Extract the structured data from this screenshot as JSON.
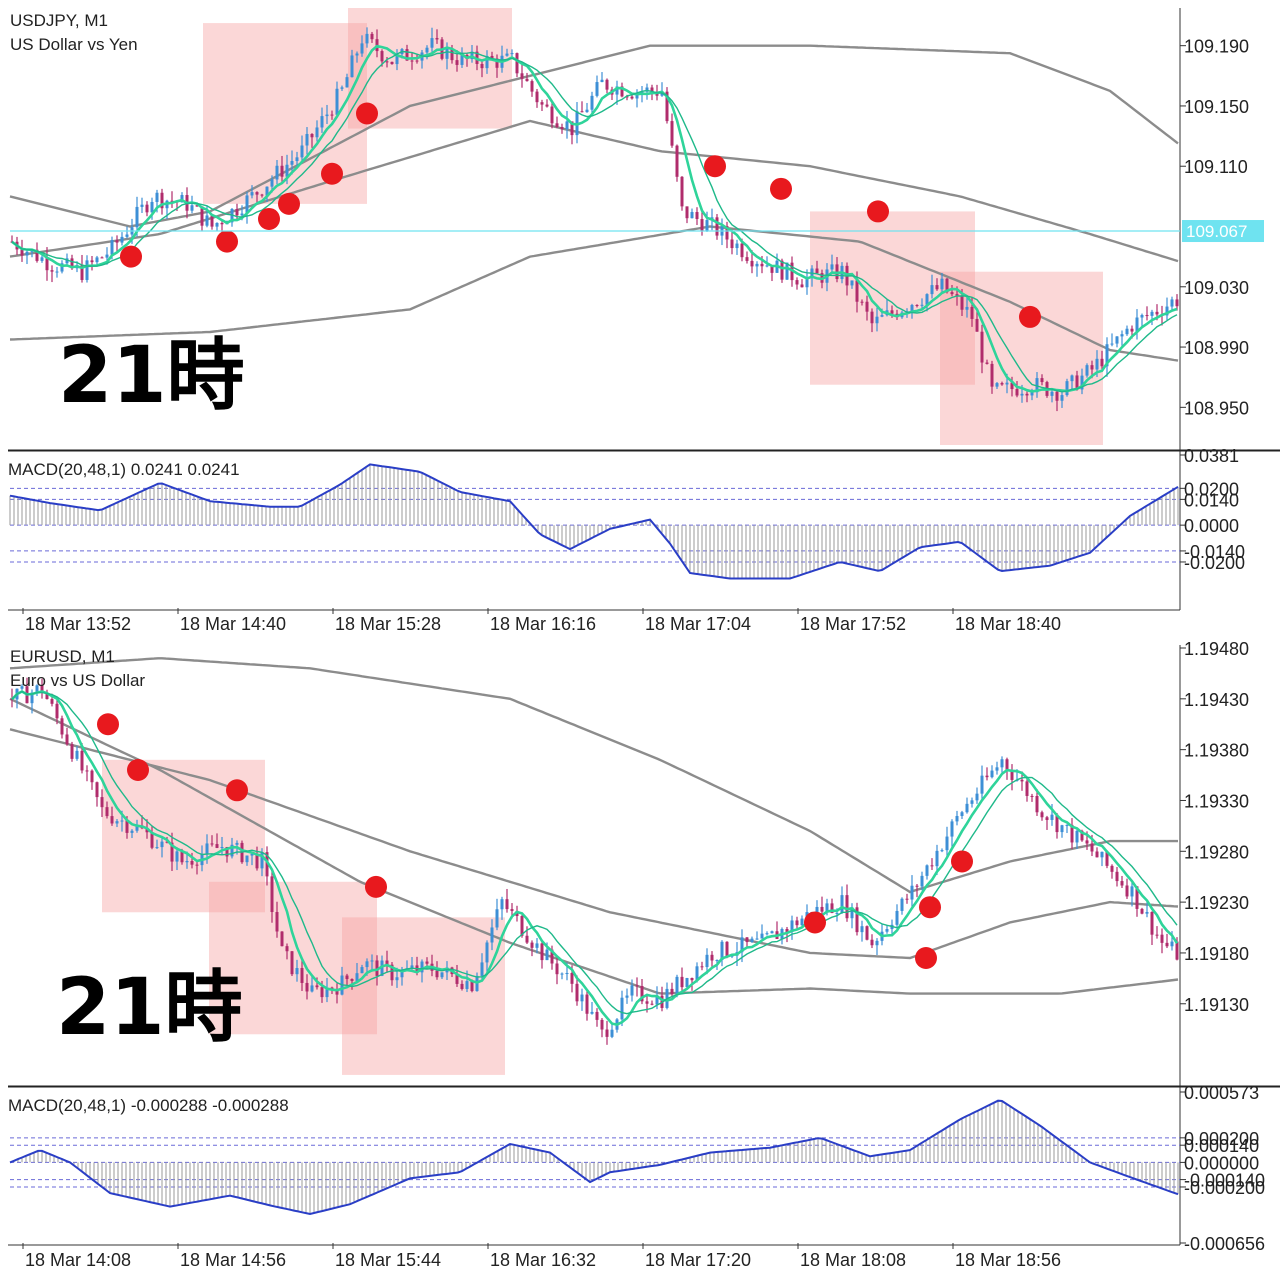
{
  "charts": [
    {
      "symbol_line": "USDJPY, M1",
      "description": "US Dollar vs Yen",
      "annotation": "21時",
      "price_ticks": [
        "109.190",
        "109.150",
        "109.110",
        "109.030",
        "108.990",
        "108.950"
      ],
      "current_price": "109.067",
      "macd_label": "MACD(20,48,1) 0.0241 0.0241",
      "macd_ticks": [
        "0.0381",
        "0.0200",
        "0.0140",
        "0.0000",
        "-0.0140",
        "-0.0200"
      ],
      "time_labels": [
        "18 Mar 13:52",
        "18 Mar 14:40",
        "18 Mar 15:28",
        "18 Mar 16:16",
        "18 Mar 17:04",
        "18 Mar 17:52",
        "18 Mar 18:40"
      ]
    },
    {
      "symbol_line": "EURUSD, M1",
      "description": "Euro vs US Dollar",
      "annotation": "21時",
      "price_ticks": [
        "1.19480",
        "1.19430",
        "1.19380",
        "1.19330",
        "1.19280",
        "1.19230",
        "1.19180",
        "1.19130"
      ],
      "macd_label": "MACD(20,48,1) -0.000288 -0.000288",
      "macd_ticks": [
        "0.000573",
        "0.000200",
        "0.000140",
        "0.000000",
        "-0.000140",
        "-0.000200",
        "-0.000656"
      ],
      "time_labels": [
        "18 Mar 14:08",
        "18 Mar 14:56",
        "18 Mar 15:44",
        "18 Mar 16:32",
        "18 Mar 17:20",
        "18 Mar 18:08",
        "18 Mar 18:56"
      ]
    }
  ],
  "colors": {
    "bull": "#3d8fd6",
    "bear": "#b02c6c",
    "ma_fast": "#2fd49a",
    "ma_slow": "#1fb98a",
    "envelope": "#8c8c8c",
    "highlight": "rgba(246,160,160,0.42)",
    "marker": "#e8191e",
    "macd_line": "#2a3ec6",
    "current_price_line": "#6fe3f0",
    "current_price_tag": "#6fe3f0"
  },
  "chart_data": [
    {
      "type": "candlestick",
      "title": "USDJPY, M1",
      "ylim": [
        108.925,
        109.215
      ],
      "close_path": [
        [
          0,
          109.06
        ],
        [
          40,
          109.045
        ],
        [
          70,
          109.04
        ],
        [
          100,
          109.055
        ],
        [
          140,
          109.09
        ],
        [
          175,
          109.085
        ],
        [
          200,
          109.07
        ],
        [
          240,
          109.09
        ],
        [
          290,
          109.12
        ],
        [
          330,
          109.16
        ],
        [
          350,
          109.195
        ],
        [
          380,
          109.18
        ],
        [
          420,
          109.19
        ],
        [
          450,
          109.18
        ],
        [
          500,
          109.18
        ],
        [
          530,
          109.15
        ],
        [
          560,
          109.135
        ],
        [
          590,
          109.165
        ],
        [
          620,
          109.16
        ],
        [
          650,
          109.16
        ],
        [
          670,
          109.08
        ],
        [
          700,
          109.07
        ],
        [
          740,
          109.05
        ],
        [
          790,
          109.035
        ],
        [
          830,
          109.04
        ],
        [
          860,
          109.005
        ],
        [
          900,
          109.02
        ],
        [
          930,
          109.03
        ],
        [
          960,
          109.01
        ],
        [
          980,
          108.96
        ],
        [
          1020,
          108.965
        ],
        [
          1050,
          108.96
        ],
        [
          1080,
          108.975
        ],
        [
          1120,
          109.005
        ],
        [
          1160,
          109.02
        ],
        [
          1178,
          109.025
        ]
      ],
      "envelope_upper": [
        [
          0,
          109.09
        ],
        [
          120,
          109.07
        ],
        [
          200,
          109.08
        ],
        [
          400,
          109.15
        ],
        [
          520,
          109.17
        ],
        [
          640,
          109.19
        ],
        [
          800,
          109.19
        ],
        [
          1000,
          109.185
        ],
        [
          1100,
          109.16
        ],
        [
          1178,
          109.12
        ]
      ],
      "envelope_mid": [
        [
          0,
          109.05
        ],
        [
          150,
          109.065
        ],
        [
          320,
          109.1
        ],
        [
          520,
          109.14
        ],
        [
          650,
          109.12
        ],
        [
          800,
          109.11
        ],
        [
          950,
          109.09
        ],
        [
          1080,
          109.065
        ],
        [
          1178,
          109.045
        ]
      ],
      "envelope_lower": [
        [
          0,
          108.995
        ],
        [
          200,
          109.0
        ],
        [
          400,
          109.015
        ],
        [
          520,
          109.05
        ],
        [
          700,
          109.07
        ],
        [
          850,
          109.06
        ],
        [
          1000,
          109.02
        ],
        [
          1100,
          108.988
        ],
        [
          1178,
          108.98
        ]
      ],
      "highlight_boxes": [
        {
          "t1": 193,
          "t2": 357,
          "p_top": 109.205,
          "p_bot": 109.085
        },
        {
          "t1": 338,
          "t2": 502,
          "p_top": 109.215,
          "p_bot": 109.135
        },
        {
          "t1": 800,
          "t2": 965,
          "p_top": 109.08,
          "p_bot": 108.965
        },
        {
          "t1": 930,
          "t2": 1093,
          "p_top": 109.04,
          "p_bot": 108.925
        }
      ],
      "markers": [
        {
          "t": 121,
          "p": 109.05
        },
        {
          "t": 217,
          "p": 109.06
        },
        {
          "t": 259,
          "p": 109.075
        },
        {
          "t": 279,
          "p": 109.085
        },
        {
          "t": 322,
          "p": 109.105
        },
        {
          "t": 357,
          "p": 109.145
        },
        {
          "t": 705,
          "p": 109.11
        },
        {
          "t": 771,
          "p": 109.095
        },
        {
          "t": 868,
          "p": 109.08
        },
        {
          "t": 1020,
          "p": 109.01
        }
      ],
      "current_price": 109.067,
      "macd": {
        "ylim": [
          -0.045,
          0.0381
        ],
        "levels": [
          0.02,
          0.014,
          0,
          -0.014,
          -0.02
        ],
        "path": [
          [
            0,
            0.016
          ],
          [
            40,
            0.012
          ],
          [
            90,
            0.008
          ],
          [
            150,
            0.023
          ],
          [
            200,
            0.013
          ],
          [
            260,
            0.01
          ],
          [
            290,
            0.01
          ],
          [
            330,
            0.022
          ],
          [
            360,
            0.033
          ],
          [
            410,
            0.029
          ],
          [
            450,
            0.018
          ],
          [
            500,
            0.013
          ],
          [
            530,
            -0.005
          ],
          [
            560,
            -0.013
          ],
          [
            600,
            -0.002
          ],
          [
            640,
            0.003
          ],
          [
            660,
            -0.01
          ],
          [
            680,
            -0.026
          ],
          [
            720,
            -0.029
          ],
          [
            780,
            -0.029
          ],
          [
            830,
            -0.02
          ],
          [
            870,
            -0.025
          ],
          [
            910,
            -0.012
          ],
          [
            950,
            -0.009
          ],
          [
            990,
            -0.025
          ],
          [
            1040,
            -0.022
          ],
          [
            1080,
            -0.015
          ],
          [
            1120,
            0.005
          ],
          [
            1178,
            0.0241
          ]
        ]
      }
    },
    {
      "type": "candlestick",
      "title": "EURUSD, M1",
      "ylim": [
        1.19055,
        1.1948
      ],
      "close_path": [
        [
          0,
          1.1943
        ],
        [
          30,
          1.1944
        ],
        [
          60,
          1.1938
        ],
        [
          90,
          1.1932
        ],
        [
          130,
          1.193
        ],
        [
          170,
          1.1927
        ],
        [
          210,
          1.19285
        ],
        [
          250,
          1.1927
        ],
        [
          270,
          1.1918
        ],
        [
          300,
          1.1914
        ],
        [
          330,
          1.1915
        ],
        [
          350,
          1.1917
        ],
        [
          380,
          1.1916
        ],
        [
          420,
          1.19165
        ],
        [
          460,
          1.1915
        ],
        [
          490,
          1.1923
        ],
        [
          530,
          1.1918
        ],
        [
          560,
          1.1915
        ],
        [
          590,
          1.191
        ],
        [
          620,
          1.1914
        ],
        [
          650,
          1.19135
        ],
        [
          700,
          1.1918
        ],
        [
          750,
          1.1919
        ],
        [
          800,
          1.1922
        ],
        [
          830,
          1.1923
        ],
        [
          860,
          1.1919
        ],
        [
          900,
          1.1924
        ],
        [
          950,
          1.1932
        ],
        [
          990,
          1.1937
        ],
        [
          1030,
          1.1932
        ],
        [
          1080,
          1.1928
        ],
        [
          1120,
          1.1924
        ],
        [
          1150,
          1.1919
        ],
        [
          1178,
          1.1917
        ]
      ],
      "envelope_upper": [
        [
          0,
          1.1946
        ],
        [
          150,
          1.1947
        ],
        [
          300,
          1.1946
        ],
        [
          500,
          1.1943
        ],
        [
          650,
          1.1937
        ],
        [
          800,
          1.193
        ],
        [
          900,
          1.1924
        ],
        [
          1000,
          1.1927
        ],
        [
          1100,
          1.1929
        ],
        [
          1178,
          1.1929
        ]
      ],
      "envelope_mid": [
        [
          0,
          1.194
        ],
        [
          200,
          1.1935
        ],
        [
          400,
          1.1928
        ],
        [
          600,
          1.1922
        ],
        [
          800,
          1.1918
        ],
        [
          900,
          1.19175
        ],
        [
          1000,
          1.1921
        ],
        [
          1100,
          1.1923
        ],
        [
          1178,
          1.19225
        ]
      ],
      "envelope_lower": [
        [
          0,
          1.1943
        ],
        [
          150,
          1.1936
        ],
        [
          350,
          1.1925
        ],
        [
          500,
          1.1919
        ],
        [
          650,
          1.1914
        ],
        [
          800,
          1.19145
        ],
        [
          900,
          1.1914
        ],
        [
          1050,
          1.1914
        ],
        [
          1178,
          1.19155
        ]
      ],
      "highlight_boxes": [
        {
          "t1": 92,
          "t2": 255,
          "p_top": 1.1937,
          "p_bot": 1.1922
        },
        {
          "t1": 199,
          "t2": 367,
          "p_top": 1.1925,
          "p_bot": 1.191
        },
        {
          "t1": 332,
          "t2": 495,
          "p_top": 1.19215,
          "p_bot": 1.1906
        }
      ],
      "markers": [
        {
          "t": 98,
          "p": 1.19405
        },
        {
          "t": 128,
          "p": 1.1936
        },
        {
          "t": 227,
          "p": 1.1934
        },
        {
          "t": 366,
          "p": 1.19245
        },
        {
          "t": 805,
          "p": 1.1921
        },
        {
          "t": 920,
          "p": 1.19225
        },
        {
          "t": 952,
          "p": 1.1927
        },
        {
          "t": 916,
          "p": 1.19175
        }
      ],
      "macd": {
        "ylim": [
          -0.000656,
          0.000573
        ],
        "levels": [
          0.0002,
          0.00014,
          0,
          -0.00014,
          -0.0002
        ],
        "path": [
          [
            0,
            0.0
          ],
          [
            30,
            0.0001
          ],
          [
            60,
            0.0
          ],
          [
            100,
            -0.00025
          ],
          [
            160,
            -0.00036
          ],
          [
            220,
            -0.00027
          ],
          [
            260,
            -0.00035
          ],
          [
            300,
            -0.00042
          ],
          [
            340,
            -0.00034
          ],
          [
            400,
            -0.00013
          ],
          [
            450,
            -8e-05
          ],
          [
            500,
            0.00015
          ],
          [
            540,
            8e-05
          ],
          [
            580,
            -0.00016
          ],
          [
            600,
            -8e-05
          ],
          [
            650,
            -2e-05
          ],
          [
            700,
            8e-05
          ],
          [
            760,
            0.00012
          ],
          [
            810,
            0.0002
          ],
          [
            860,
            5e-05
          ],
          [
            900,
            0.0001
          ],
          [
            950,
            0.00035
          ],
          [
            990,
            0.00051
          ],
          [
            1030,
            0.0003
          ],
          [
            1080,
            0.0
          ],
          [
            1120,
            -0.00012
          ],
          [
            1178,
            -0.000288
          ]
        ]
      }
    }
  ]
}
